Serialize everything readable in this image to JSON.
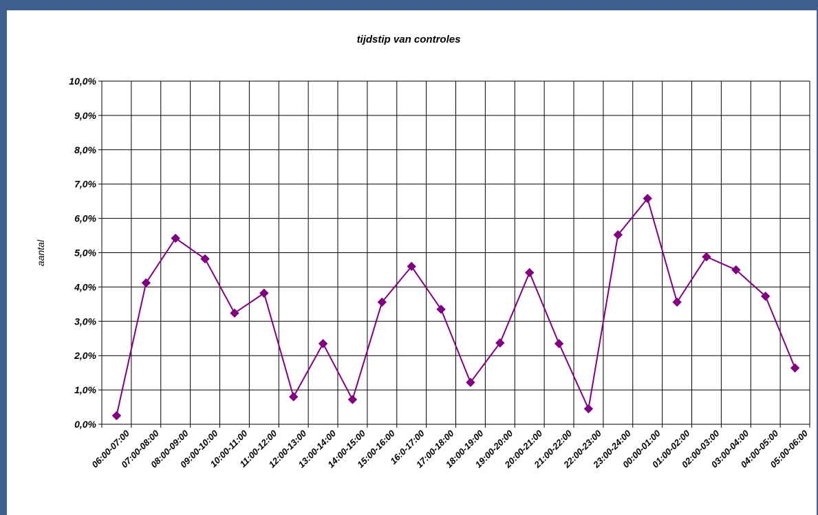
{
  "colors": {
    "frame": "#3f5f8f",
    "series": "#800080",
    "grid": "#000000"
  },
  "chart_data": {
    "type": "line",
    "title": "tijdstip van controles",
    "xlabel": "",
    "ylabel": "aantal",
    "ylim": [
      0,
      10
    ],
    "y_tick_step": 1,
    "y_tick_labels": [
      "0,0%",
      "1,0%",
      "2,0%",
      "3,0%",
      "4,0%",
      "5,0%",
      "6,0%",
      "7,0%",
      "8,0%",
      "9,0%",
      "10,0%"
    ],
    "grid": true,
    "legend": "none",
    "marker": "diamond",
    "categories": [
      "06:00-07:00",
      "07:00-08:00",
      "08:00-09:00",
      "09:00-10:00",
      "10:00-11:00",
      "11:00-12:00",
      "12:00-13:00",
      "13:00-14:00",
      "14:00-15:00",
      "15:00-16:00",
      "16:0-17:00",
      "17:00-18:00",
      "18:00-19:00",
      "19:00-20:00",
      "20:00-21:00",
      "21:00-22:00",
      "22:00-23:00",
      "23:00-24:00",
      "00:00-01:00",
      "01:00-02:00",
      "02:00-03:00",
      "03:00-04:00",
      "04:00-05:00",
      "05:00-06:00"
    ],
    "series": [
      {
        "values": [
          0.25,
          4.12,
          5.42,
          4.82,
          3.24,
          3.82,
          0.8,
          2.35,
          0.72,
          3.56,
          4.6,
          3.35,
          1.22,
          2.37,
          4.42,
          2.35,
          0.45,
          5.52,
          6.58,
          3.56,
          4.88,
          4.5,
          3.73,
          1.64
        ]
      }
    ]
  }
}
